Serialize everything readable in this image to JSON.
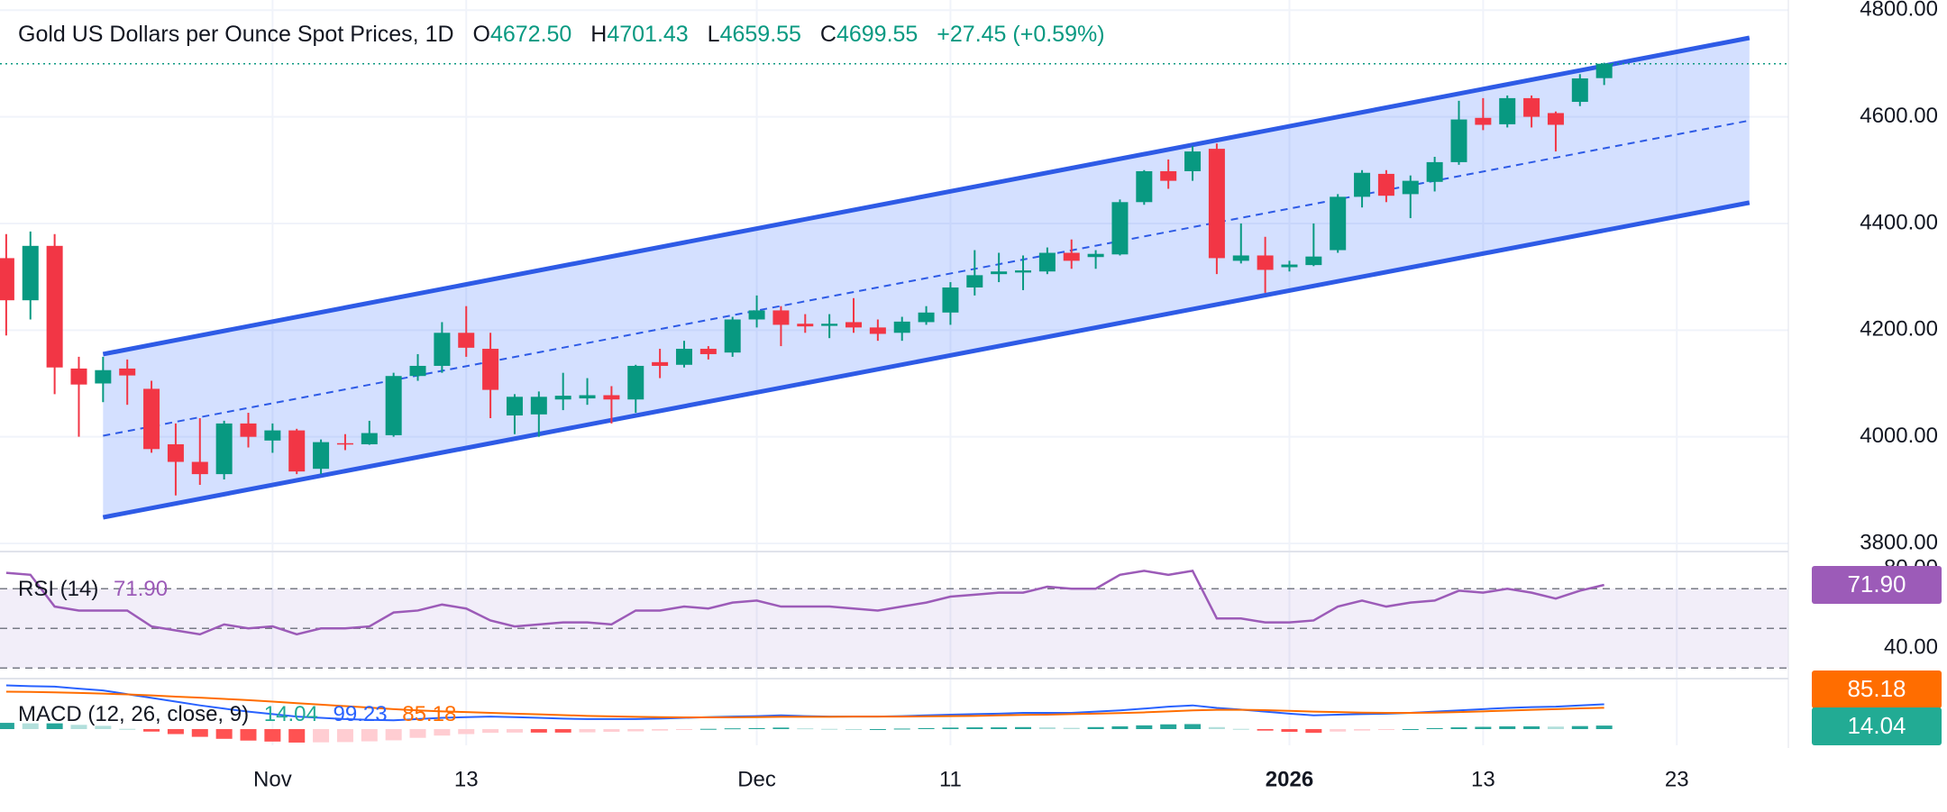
{
  "chart_data": {
    "type": "candlestick",
    "header": {
      "title": "Gold US Dollars per Ounce Spot Prices, 1D",
      "ohlc": [
        {
          "label": "O",
          "value": "4672.50"
        },
        {
          "label": "H",
          "value": "4701.43"
        },
        {
          "label": "L",
          "value": "4659.55"
        },
        {
          "label": "C",
          "value": "4699.55"
        }
      ],
      "change": "+27.45 (+0.59%)"
    },
    "categories": [
      null,
      null,
      null,
      null,
      null,
      null,
      null,
      null,
      null,
      null,
      null,
      "Nov",
      null,
      null,
      null,
      null,
      null,
      null,
      null,
      "13",
      null,
      null,
      null,
      null,
      null,
      null,
      null,
      null,
      null,
      null,
      null,
      "Dec",
      null,
      null,
      null,
      null,
      null,
      null,
      null,
      "11",
      null,
      null,
      null,
      null,
      null,
      null,
      null,
      null,
      null,
      null,
      null,
      null,
      null,
      "2026",
      null,
      null,
      null,
      null,
      null,
      null,
      null,
      "13",
      null,
      null,
      null,
      null,
      null,
      null,
      null,
      "23",
      null,
      null,
      null
    ],
    "bold_categories": [
      "2026"
    ],
    "ohlc": {
      "open": [
        4335,
        4256,
        4358,
        4128,
        4100,
        4128,
        4090,
        3986,
        3953,
        3930,
        4025,
        3993,
        4012,
        3940,
        3988,
        3986,
        4003,
        4114,
        4133,
        4195,
        4165,
        4040,
        4042,
        4070,
        4072,
        4078,
        4070,
        4140,
        4135,
        4165,
        4158,
        4220,
        4237,
        4212,
        4208,
        4215,
        4205,
        4195,
        4215,
        4233,
        4280,
        4305,
        4308,
        4310,
        4345,
        4337,
        4342,
        4440,
        4498,
        4498,
        4540,
        4330,
        4340,
        4318,
        4322,
        4350,
        4450,
        4493,
        4455,
        4478,
        4515,
        4598,
        4586,
        4635,
        4607,
        4628,
        4672.5,
        null,
        null,
        null,
        null,
        null,
        null
      ],
      "high": [
        4380,
        4385,
        4380,
        4150,
        4150,
        4145,
        4105,
        4025,
        4035,
        4030,
        4045,
        4025,
        4015,
        3995,
        4005,
        4030,
        4120,
        4155,
        4215,
        4245,
        4195,
        4080,
        4085,
        4120,
        4110,
        4095,
        4135,
        4165,
        4180,
        4170,
        4225,
        4265,
        4245,
        4230,
        4230,
        4260,
        4220,
        4225,
        4245,
        4290,
        4350,
        4345,
        4340,
        4355,
        4370,
        4350,
        4445,
        4500,
        4520,
        4545,
        4550,
        4400,
        4375,
        4330,
        4400,
        4455,
        4500,
        4500,
        4490,
        4525,
        4630,
        4635,
        4640,
        4640,
        4610,
        4680,
        4701.43,
        null,
        null,
        null,
        null,
        null,
        null
      ],
      "low": [
        4190,
        4220,
        4080,
        4000,
        4065,
        4060,
        3970,
        3890,
        3910,
        3920,
        3980,
        3970,
        3930,
        3930,
        3975,
        3985,
        4000,
        4105,
        4120,
        4150,
        4035,
        4005,
        4000,
        4050,
        4060,
        4025,
        4045,
        4110,
        4130,
        4145,
        4150,
        4205,
        4170,
        4195,
        4185,
        4195,
        4180,
        4180,
        4210,
        4210,
        4265,
        4290,
        4275,
        4305,
        4315,
        4315,
        4340,
        4435,
        4465,
        4480,
        4305,
        4325,
        4270,
        4310,
        4320,
        4345,
        4430,
        4440,
        4410,
        4460,
        4510,
        4575,
        4580,
        4580,
        4535,
        4620,
        4659.55,
        null,
        null,
        null,
        null,
        null,
        null
      ],
      "close": [
        4256,
        4358,
        4130,
        4098,
        4125,
        4115,
        3977,
        3953,
        3930,
        4025,
        4000,
        4012,
        3935,
        3990,
        3986,
        4007,
        4114,
        4133,
        4195,
        4167,
        4088,
        4075,
        4075,
        4077,
        4078,
        4070,
        4133,
        4133,
        4165,
        4155,
        4220,
        4237,
        4210,
        4207,
        4212,
        4205,
        4193,
        4216,
        4233,
        4280,
        4303,
        4310,
        4312,
        4345,
        4330,
        4343,
        4440,
        4498,
        4480,
        4535,
        4335,
        4340,
        4313,
        4323,
        4338,
        4450,
        4495,
        4452,
        4480,
        4515,
        4595,
        4585,
        4635,
        4600,
        4585,
        4672,
        4699.55,
        null,
        null,
        null,
        null,
        null,
        null
      ]
    },
    "up_color": "#089981",
    "down_color": "#f23645",
    "ylim": [
      3795,
      4819
    ],
    "yticks": [
      {
        "value": 3800,
        "label": "3800.00"
      },
      {
        "value": 4000,
        "label": "4000.00"
      },
      {
        "value": 4200,
        "label": "4200.00"
      },
      {
        "value": 4400,
        "label": "4400.00"
      },
      {
        "value": 4600,
        "label": "4600.00"
      },
      {
        "value": 4800,
        "label": "4800.00"
      }
    ],
    "grid": true,
    "last_price_line": true,
    "channel": {
      "x": [
        4,
        72
      ],
      "upper": [
        4155,
        4748
      ],
      "middle": [
        4002,
        4593
      ],
      "lower": [
        3849,
        4439
      ],
      "color": "#2e5be6",
      "fill": "rgba(41,98,255,0.2)"
    },
    "rsi": {
      "name": "RSI (14)",
      "value_label": "71.90",
      "color": "#9c5bb8",
      "values": [
        78,
        77,
        61,
        59,
        59,
        59,
        51,
        49,
        47,
        52,
        50,
        51,
        47,
        50,
        50,
        51,
        58,
        59,
        62,
        60,
        54,
        51,
        52,
        53,
        53,
        52,
        59,
        59,
        61,
        60,
        63,
        64,
        61,
        61,
        61,
        60,
        59,
        61,
        63,
        66,
        67,
        68,
        68,
        71,
        70,
        70,
        77,
        79,
        77,
        79,
        55,
        55,
        53,
        53,
        54,
        61,
        64,
        61,
        63,
        64,
        69,
        68,
        70,
        68,
        65,
        69,
        71.9,
        null,
        null,
        null,
        null,
        null,
        null
      ],
      "ylim": [
        25.6,
        86.9
      ],
      "yticks": [
        {
          "value": 40,
          "label": "40.00"
        },
        {
          "value": 80,
          "label": "80.00"
        }
      ],
      "levels": [
        70,
        50,
        30
      ]
    },
    "macd": {
      "name": "MACD (12, 26, close, 9)",
      "ylim": [
        -65,
        195
      ],
      "histogram": {
        "value_label": "14.04",
        "color": "#22ab94",
        "colors": {
          "pos_up": "#26a69a",
          "pos_down": "#b2dfdb",
          "neg_down": "#ff5252",
          "neg_up": "#ffcdd2"
        },
        "values": [
          25,
          23,
          23,
          17,
          13,
          1,
          -10,
          -20,
          -31,
          -39,
          -46,
          -50,
          -54,
          -53,
          -52,
          -49,
          -45,
          -35,
          -26,
          -20,
          -15,
          -14,
          -14,
          -14,
          -13,
          -11,
          -9,
          -6,
          -2,
          1,
          3,
          4,
          6,
          3,
          1,
          0,
          0,
          2,
          4,
          6,
          7,
          7,
          8,
          7,
          5,
          8,
          11,
          15,
          19,
          20,
          8,
          1,
          -6,
          -11,
          -15,
          -10,
          -6,
          -3,
          0,
          4,
          7,
          9,
          11,
          11,
          10,
          12,
          14.04,
          null,
          null,
          null,
          null,
          null,
          null
        ]
      },
      "macd": {
        "value_label": "99.23",
        "color": "#2962ff",
        "values": [
          175,
          172,
          170,
          162,
          155,
          140,
          125,
          110,
          95,
          82,
          70,
          60,
          50,
          45,
          40,
          37,
          35,
          40,
          45,
          48,
          50,
          48,
          45,
          42,
          40,
          40,
          40,
          42,
          45,
          48,
          50,
          52,
          55,
          52,
          50,
          50,
          50,
          52,
          55,
          58,
          60,
          62,
          65,
          65,
          65,
          70,
          75,
          82,
          90,
          95,
          85,
          78,
          70,
          62,
          55,
          58,
          60,
          62,
          65,
          70,
          75,
          80,
          85,
          88,
          90,
          95,
          99.23,
          null,
          null,
          null,
          null,
          null,
          null
        ]
      },
      "signal": {
        "value_label": "85.18",
        "color": "#ff6d00",
        "values": [
          150,
          149,
          147,
          145,
          142,
          139,
          135,
          130,
          126,
          121,
          116,
          110,
          104,
          98,
          92,
          86,
          80,
          75,
          71,
          68,
          65,
          62,
          59,
          56,
          53,
          51,
          49,
          48,
          47,
          47,
          47,
          48,
          49,
          49,
          49,
          50,
          50,
          50,
          51,
          52,
          53,
          55,
          57,
          58,
          60,
          62,
          64,
          67,
          71,
          75,
          77,
          77,
          76,
          73,
          70,
          68,
          66,
          65,
          65,
          66,
          68,
          71,
          74,
          77,
          80,
          83,
          85.18,
          null,
          null,
          null,
          null,
          null,
          null
        ]
      }
    }
  }
}
